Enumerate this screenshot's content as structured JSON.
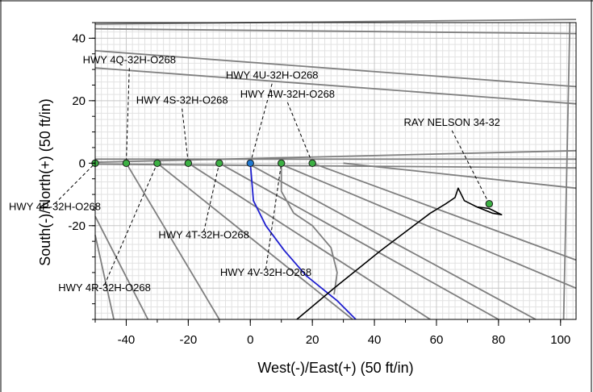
{
  "chart_data": {
    "type": "line",
    "title": "",
    "xlabel": "West(-)/East(+) (50 ft/in)",
    "ylabel": "South(-)/North(+) (50 ft/in)",
    "xlim": [
      -50,
      105
    ],
    "ylim": [
      -50,
      45
    ],
    "x_ticks": [
      -40,
      -20,
      0,
      20,
      40,
      60,
      80,
      100
    ],
    "y_ticks": [
      -20,
      0,
      20,
      40
    ],
    "x_tick_labels": [
      "-40",
      "-20",
      "0",
      "20",
      "40",
      "60",
      "80",
      "100"
    ],
    "y_tick_labels": [
      "-20",
      "0",
      "20",
      "40"
    ],
    "grid": true,
    "colors": {
      "grid_minor": "#e2e2e2",
      "grid_major": "#c8c8c8",
      "offset_wells": "#7f7f7f",
      "wellpath_blue": "#1f1fcf",
      "wellpath_black": "#000000",
      "marker_fill": "#3cb043",
      "marker_fill_blue": "#1f78d1"
    },
    "series": [
      {
        "points": [
          [
            -50,
            1.3
          ],
          [
            105,
            1.3
          ]
        ],
        "style": "offset"
      },
      {
        "points": [
          [
            -50,
            0.3
          ],
          [
            105,
            4
          ]
        ],
        "style": "offset"
      },
      {
        "points": [
          [
            -50,
            -0.3
          ],
          [
            105,
            -1.5
          ]
        ],
        "style": "offset"
      },
      {
        "points": [
          [
            -50,
            43
          ],
          [
            105,
            41.5
          ]
        ],
        "style": "offset"
      },
      {
        "points": [
          [
            -50,
            44.5
          ],
          [
            105,
            46
          ]
        ],
        "style": "offset"
      },
      {
        "points": [
          [
            -50,
            36
          ],
          [
            105,
            24.5
          ]
        ],
        "style": "offset"
      },
      {
        "points": [
          [
            -50,
            30.5
          ],
          [
            105,
            19
          ]
        ],
        "style": "offset"
      },
      {
        "points": [
          [
            103,
            45
          ],
          [
            101,
            -50
          ]
        ],
        "style": "offset"
      },
      {
        "points": [
          [
            -50,
            -17
          ],
          [
            -33,
            -50
          ]
        ],
        "style": "offset"
      },
      {
        "points": [
          [
            -50,
            -23
          ],
          [
            -44,
            -50
          ]
        ],
        "style": "offset"
      },
      {
        "points": [
          [
            -40,
            0
          ],
          [
            -10,
            -50
          ]
        ],
        "style": "offset"
      },
      {
        "points": [
          [
            -30,
            0
          ],
          [
            33,
            -50
          ]
        ],
        "style": "offset"
      },
      {
        "points": [
          [
            -20,
            0
          ],
          [
            58,
            -50
          ]
        ],
        "style": "offset"
      },
      {
        "points": [
          [
            -10,
            0
          ],
          [
            80,
            -50
          ]
        ],
        "style": "offset"
      },
      {
        "points": [
          [
            -1,
            0
          ],
          [
            92,
            -50
          ]
        ],
        "style": "offset"
      },
      {
        "points": [
          [
            9,
            0
          ],
          [
            105,
            -40
          ]
        ],
        "style": "offset"
      },
      {
        "points": [
          [
            20,
            0
          ],
          [
            105,
            -31
          ]
        ],
        "style": "offset"
      },
      {
        "points": [
          [
            30,
            0
          ],
          [
            105,
            -8
          ]
        ],
        "style": "offset"
      },
      {
        "points": [
          [
            10,
            0
          ],
          [
            10,
            -9
          ],
          [
            14,
            -16
          ],
          [
            20,
            -20
          ],
          [
            26,
            -27
          ],
          [
            28,
            -35
          ],
          [
            27,
            -42
          ]
        ],
        "style": "offset"
      },
      {
        "points": [
          [
            0,
            0
          ],
          [
            1,
            -12
          ],
          [
            5,
            -20
          ],
          [
            11,
            -28
          ],
          [
            18,
            -36
          ],
          [
            28,
            -44
          ],
          [
            34,
            -50
          ]
        ],
        "style": "blue"
      },
      {
        "points": [
          [
            15,
            -50
          ],
          [
            27,
            -40
          ],
          [
            42,
            -28
          ],
          [
            50,
            -22
          ],
          [
            58,
            -16
          ],
          [
            63,
            -13
          ],
          [
            66,
            -11
          ],
          [
            67,
            -8
          ],
          [
            69,
            -12
          ],
          [
            73,
            -14
          ],
          [
            77,
            -14.5
          ],
          [
            81,
            -16.5
          ],
          [
            78,
            -16
          ],
          [
            73,
            -14
          ]
        ],
        "style": "black"
      }
    ],
    "wells": [
      {
        "name": "HWY 4P-32H-O268",
        "x": -50,
        "y": 0,
        "label_x": -63,
        "label_y": -15,
        "color": "green"
      },
      {
        "name": "HWY 4Q-32H-O268",
        "x": -40,
        "y": 0,
        "label_x": -39,
        "label_y": 32,
        "color": "green"
      },
      {
        "name": "HWY 4R-32H-O268",
        "x": -30,
        "y": 0,
        "label_x": -47,
        "label_y": -41,
        "color": "green"
      },
      {
        "name": "HWY 4S-32H-O268",
        "x": -20,
        "y": 0,
        "label_x": -22,
        "label_y": 19,
        "color": "green"
      },
      {
        "name": "HWY 4T-32H-O268",
        "x": -10,
        "y": 0,
        "label_x": -15,
        "label_y": -24,
        "color": "green"
      },
      {
        "name": "HWY 4U-32H-O268",
        "x": 0,
        "y": 0,
        "label_x": 7,
        "label_y": 27,
        "color": "blue"
      },
      {
        "name": "HWY 4V-32H-O268",
        "x": 10,
        "y": 0,
        "label_x": 5,
        "label_y": -36,
        "color": "green"
      },
      {
        "name": "HWY 4W-32H-O268",
        "x": 20,
        "y": 0,
        "label_x": 12,
        "label_y": 21,
        "color": "green"
      },
      {
        "name": "RAY NELSON 34-32",
        "x": 77,
        "y": -13,
        "label_x": 65,
        "label_y": 12,
        "color": "green"
      }
    ]
  }
}
